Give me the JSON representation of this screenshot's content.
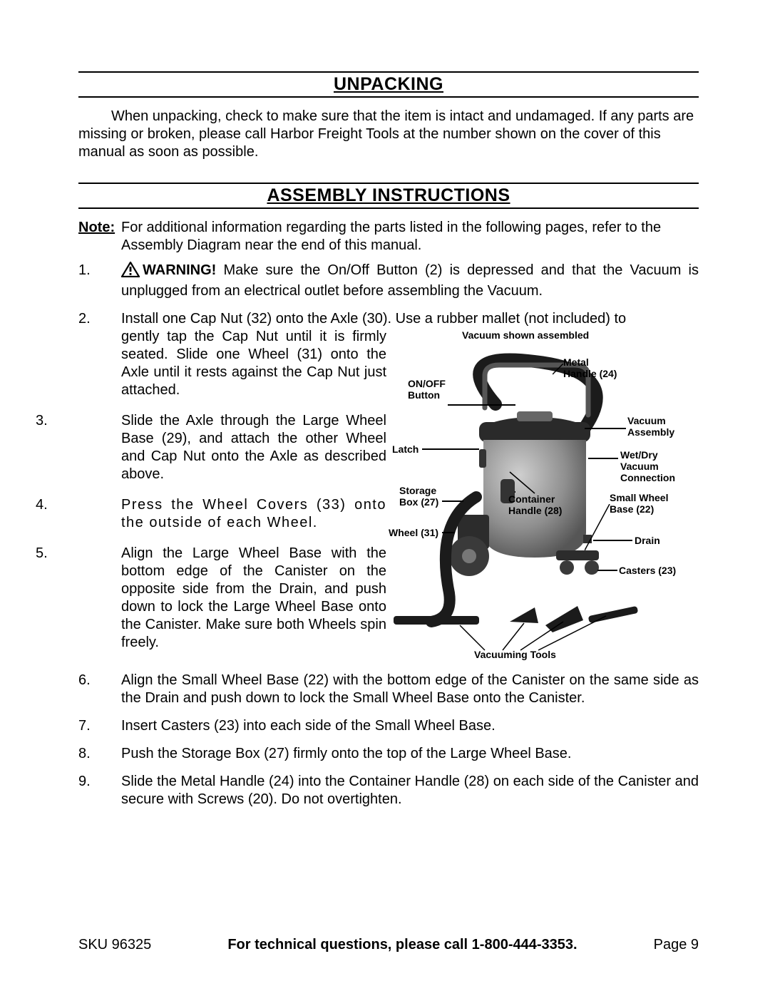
{
  "sections": {
    "unpacking": {
      "title": "UNPACKING",
      "paragraph": "When unpacking, check to make sure that the item is intact and undamaged.  If any parts are missing or broken, please call Harbor Freight Tools at the number shown on the cover of this manual as soon as possible."
    },
    "assembly": {
      "title": "ASSEMBLY INSTRUCTIONS",
      "note_label": "Note:",
      "note_text": "For additional information regarding the parts listed in the following pages, refer to the Assembly Diagram near the end of this manual.",
      "items": {
        "1": {
          "num": "1.",
          "warning": "WARNING!",
          "text": "  Make sure the On/Off Button (2) is depressed and that the Vacuum is unplugged from an electrical outlet before assembling the Vacuum."
        },
        "2": {
          "num": "2.",
          "lead": "Install one Cap Nut (32) onto the Axle (30).  Use a rubber mallet (not included) to ",
          "wrapped": "gently tap the Cap Nut until it is firmly seated.  Slide one Wheel (31) onto the Axle until it rests against the Cap Nut just attached."
        },
        "3": {
          "num": "3.",
          "text": "Slide the Axle through the Large Wheel Base (29), and attach the other Wheel and Cap Nut onto the Axle as described above."
        },
        "4": {
          "num": "4.",
          "text": "Press the Wheel Covers (33) onto the outside of each Wheel."
        },
        "5": {
          "num": "5.",
          "text": "Align the Large Wheel Base with the bottom edge of the Canister on the opposite side from the Drain, and push down to lock the Large Wheel Base onto the Canister.  Make sure both Wheels spin freely."
        },
        "6": {
          "num": "6.",
          "text": "Align the Small Wheel Base (22) with the bottom edge of the Canister on the same side as the Drain and push down to lock the Small Wheel Base onto the Canister."
        },
        "7": {
          "num": "7.",
          "text": "Insert Casters (23) into each side of the Small Wheel Base."
        },
        "8": {
          "num": "8.",
          "text": "Push the Storage Box (27) firmly onto the top of the Large Wheel Base."
        },
        "9": {
          "num": "9.",
          "text": "Slide the Metal Handle (24) into the Container Handle (28) on each side of the Canister and secure with Screws (20).  Do not overtighten."
        }
      }
    }
  },
  "diagram": {
    "caption": "Vacuum shown assembled",
    "labels": {
      "onoff": "ON/OFF\nButton",
      "latch": "Latch",
      "storage": "Storage\nBox (27)",
      "wheel": "Wheel (31)",
      "metal_handle": "Metal\nHandle (24)",
      "vac_assembly": "Vacuum\nAssembly",
      "wetdry": "Wet/Dry\nVacuum\nConnection",
      "small_wheel": "Small Wheel\nBase (22)",
      "drain": "Drain",
      "casters": "Casters (23)",
      "container_handle": "Container\nHandle (28)",
      "vac_tools": "Vacuuming Tools"
    },
    "colors": {
      "canister": "#9a9a9a",
      "lid": "#2a2a2a",
      "hose": "#1b1b1b",
      "wheel": "#4a4a4a",
      "text": "#000000"
    }
  },
  "footer": {
    "sku": "SKU 96325",
    "center": "For technical questions, please call 1-800-444-3353.",
    "page": "Page 9"
  }
}
